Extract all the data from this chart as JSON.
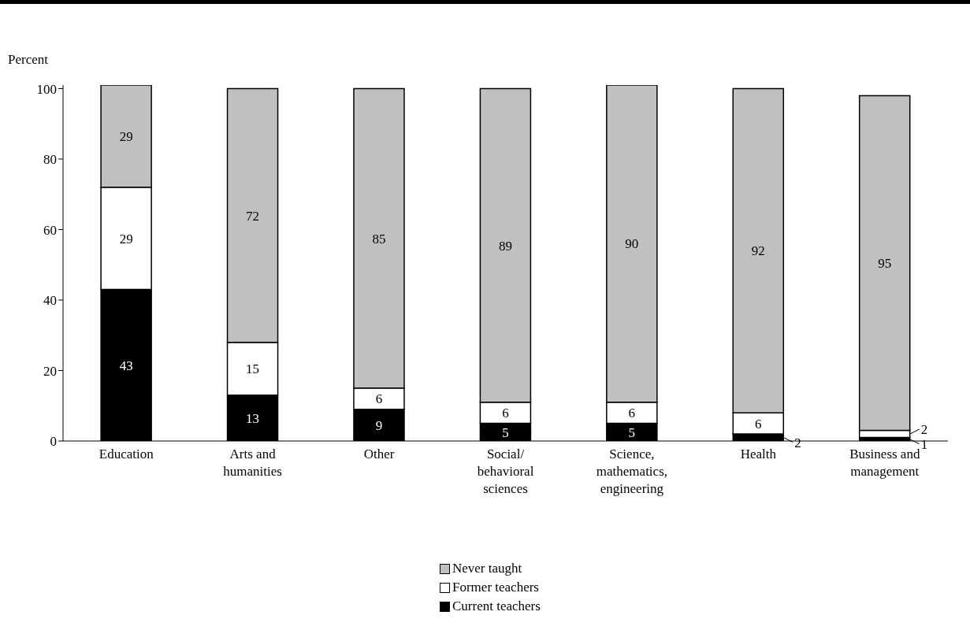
{
  "chart_data": {
    "type": "bar",
    "stacked": true,
    "ylabel": "Percent",
    "categories": [
      "Education",
      "Arts and humanities",
      "Other",
      "Social/ behavioral sciences",
      "Science, mathematics, engineering",
      "Health",
      "Business and management"
    ],
    "series": [
      {
        "name": "Current teachers",
        "color": "#000000",
        "values": [
          43,
          13,
          9,
          5,
          5,
          2,
          1
        ]
      },
      {
        "name": "Former teachers",
        "color": "#ffffff",
        "values": [
          29,
          15,
          6,
          6,
          6,
          6,
          2
        ]
      },
      {
        "name": "Never taught",
        "color": "#c0c0c0",
        "values": [
          29,
          72,
          85,
          89,
          90,
          92,
          95
        ]
      }
    ],
    "ylim": [
      0,
      101
    ],
    "yticks": [
      0,
      20,
      40,
      60,
      80,
      100
    ],
    "grid": false,
    "legend": "bottom",
    "data_labels": true
  }
}
